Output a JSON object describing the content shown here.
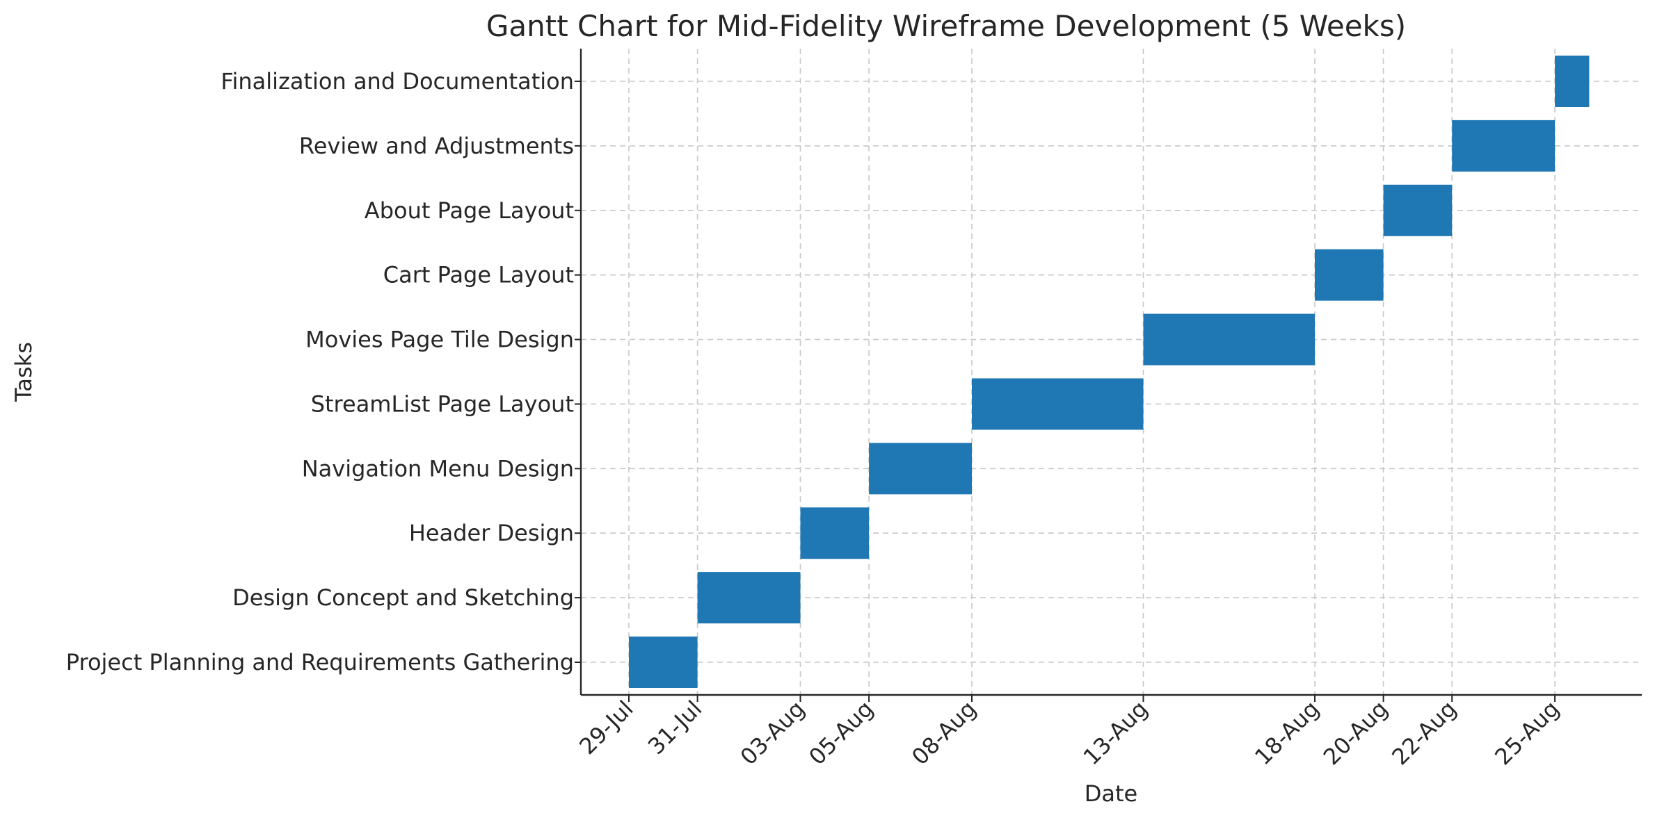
{
  "chart_data": {
    "type": "bar",
    "orientation": "horizontal",
    "subtype": "gantt",
    "title": "Gantt Chart for Mid-Fidelity Wireframe Development (5 Weeks)",
    "xlabel": "Date",
    "ylabel": "Tasks",
    "x_axis_type": "date",
    "xlim": [
      "2024-07-28",
      "2024-08-29"
    ],
    "grid": true,
    "bar_color": "#1f77b4",
    "x_ticks": [
      {
        "date": "2024-07-29",
        "label": "29-Jul"
      },
      {
        "date": "2024-07-31",
        "label": "31-Jul"
      },
      {
        "date": "2024-08-03",
        "label": "03-Aug"
      },
      {
        "date": "2024-08-05",
        "label": "05-Aug"
      },
      {
        "date": "2024-08-08",
        "label": "08-Aug"
      },
      {
        "date": "2024-08-13",
        "label": "13-Aug"
      },
      {
        "date": "2024-08-18",
        "label": "18-Aug"
      },
      {
        "date": "2024-08-20",
        "label": "20-Aug"
      },
      {
        "date": "2024-08-22",
        "label": "22-Aug"
      },
      {
        "date": "2024-08-25",
        "label": "25-Aug"
      }
    ],
    "tasks": [
      {
        "name": "Project Planning and Requirements Gathering",
        "start": "2024-07-29",
        "end": "2024-07-31"
      },
      {
        "name": "Design Concept and Sketching",
        "start": "2024-07-31",
        "end": "2024-08-03"
      },
      {
        "name": "Header Design",
        "start": "2024-08-03",
        "end": "2024-08-05"
      },
      {
        "name": "Navigation Menu Design",
        "start": "2024-08-05",
        "end": "2024-08-08"
      },
      {
        "name": "StreamList Page Layout",
        "start": "2024-08-08",
        "end": "2024-08-13"
      },
      {
        "name": "Movies Page Tile Design",
        "start": "2024-08-13",
        "end": "2024-08-18"
      },
      {
        "name": "Cart Page Layout",
        "start": "2024-08-18",
        "end": "2024-08-20"
      },
      {
        "name": "About Page Layout",
        "start": "2024-08-20",
        "end": "2024-08-22"
      },
      {
        "name": "Review and Adjustments",
        "start": "2024-08-22",
        "end": "2024-08-25"
      },
      {
        "name": "Finalization and Documentation",
        "start": "2024-08-25",
        "end": "2024-08-26"
      }
    ]
  }
}
